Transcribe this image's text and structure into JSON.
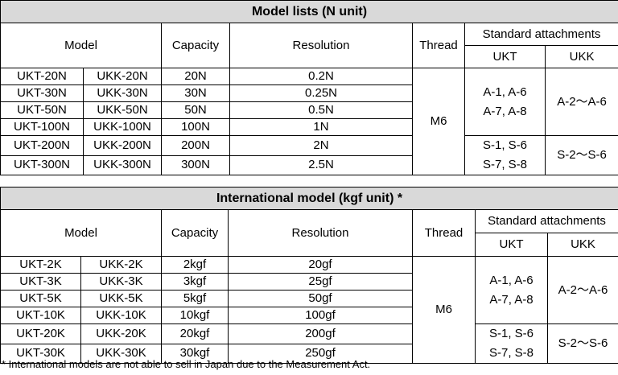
{
  "tables": [
    {
      "title": "Model lists (N unit)",
      "headers": {
        "model": "Model",
        "capacity": "Capacity",
        "resolution": "Resolution",
        "thread": "Thread",
        "attachments": "Standard attachments",
        "ukt": "UKT",
        "ukk": "UKK"
      },
      "rows": [
        [
          "UKT-20N",
          "UKK-20N",
          "20N",
          "0.2N"
        ],
        [
          "UKT-30N",
          "UKK-30N",
          "30N",
          "0.25N"
        ],
        [
          "UKT-50N",
          "UKK-50N",
          "50N",
          "0.5N"
        ],
        [
          "UKT-100N",
          "UKK-100N",
          "100N",
          "1N"
        ],
        [
          "UKT-200N",
          "UKK-200N",
          "200N",
          "2N"
        ],
        [
          "UKT-300N",
          "UKK-300N",
          "300N",
          "2.5N"
        ]
      ],
      "thread": "M6",
      "attachments": [
        {
          "ukt": [
            "A-1, A-6",
            "A-7, A-8"
          ],
          "ukk": "A-2～A-6"
        },
        {
          "ukt": [
            "S-1, S-6",
            "S-7, S-8"
          ],
          "ukk": "S-2～S-6"
        }
      ]
    },
    {
      "title": "International model (kgf unit) *",
      "headers": {
        "model": "Model",
        "capacity": "Capacity",
        "resolution": "Resolution",
        "thread": "Thread",
        "attachments": "Standard attachments",
        "ukt": "UKT",
        "ukk": "UKK"
      },
      "rows": [
        [
          "UKT-2K",
          "UKK-2K",
          "2kgf",
          "20gf"
        ],
        [
          "UKT-3K",
          "UKK-3K",
          "3kgf",
          "25gf"
        ],
        [
          "UKT-5K",
          "UKK-5K",
          "5kgf",
          "50gf"
        ],
        [
          "UKT-10K",
          "UKK-10K",
          "10kgf",
          "100gf"
        ],
        [
          "UKT-20K",
          "UKK-20K",
          "20kgf",
          "200gf"
        ],
        [
          "UKT-30K",
          "UKK-30K",
          "30kgf",
          "250gf"
        ]
      ],
      "thread": "M6",
      "attachments": [
        {
          "ukt": [
            "A-1, A-6",
            "A-7, A-8"
          ],
          "ukk": "A-2～A-6"
        },
        {
          "ukt": [
            "S-1, S-6",
            "S-7, S-8"
          ],
          "ukk": "S-2～S-6"
        }
      ]
    }
  ],
  "footnote": "* International models are not able to sell in Japan due to the Measurement Act."
}
